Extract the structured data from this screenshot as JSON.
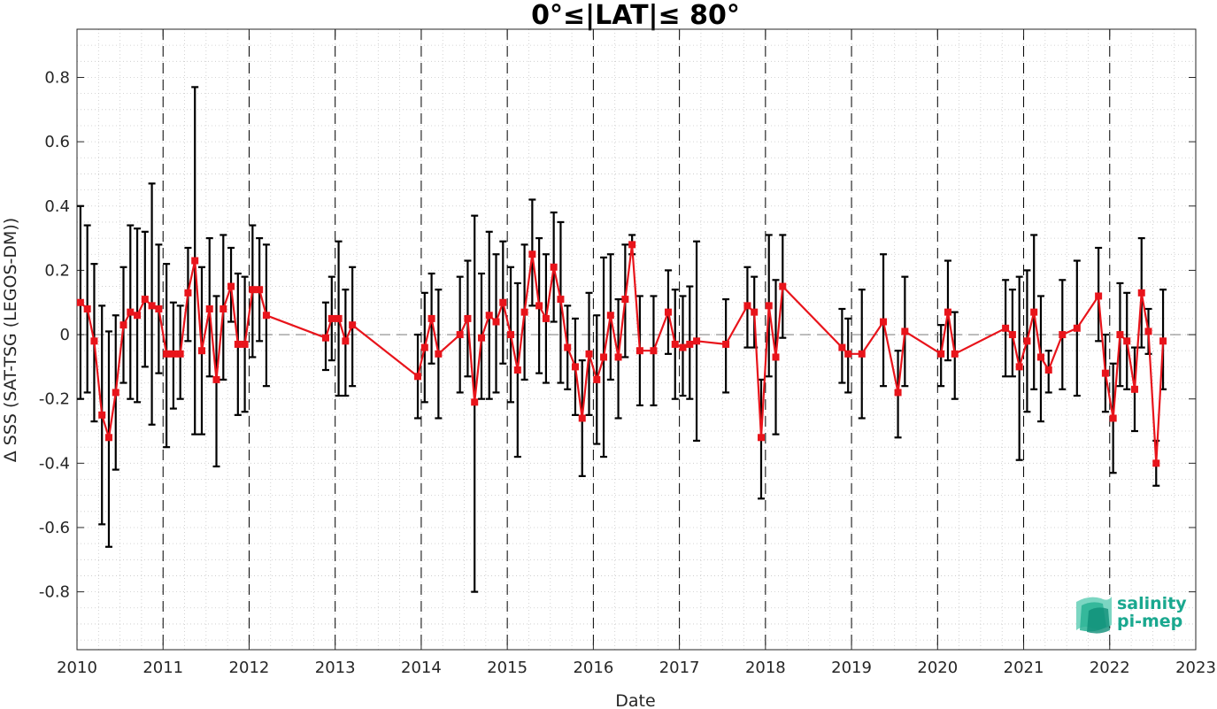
{
  "chart_data": {
    "type": "line",
    "title": "0°≤|LAT|≤ 80°",
    "xlabel": "Date",
    "ylabel": "Δ SSS (SAT-TSG (LEGOS-DM))",
    "xlim": [
      2010,
      2023
    ],
    "ylim": [
      -0.98,
      0.95
    ],
    "xticks": [
      "2010",
      "2011",
      "2012",
      "2013",
      "2014",
      "2015",
      "2016",
      "2017",
      "2018",
      "2019",
      "2020",
      "2021",
      "2022",
      "2023"
    ],
    "yticks": [
      "-0.8",
      "-0.6",
      "-0.4",
      "-0.2",
      "0",
      "0.2",
      "0.4",
      "0.6",
      "0.8"
    ],
    "grid": "minor dotted",
    "year_boundaries_dashed": true,
    "zero_line_dashed": true,
    "series_color": "#e8141b",
    "errorbar_color": "#000000",
    "series": [
      {
        "points": [
          {
            "x": 2010.04,
            "y": 0.1,
            "lo": -0.2,
            "hi": 0.4
          },
          {
            "x": 2010.12,
            "y": 0.08,
            "lo": -0.18,
            "hi": 0.34
          },
          {
            "x": 2010.2,
            "y": -0.02,
            "lo": -0.27,
            "hi": 0.22
          },
          {
            "x": 2010.29,
            "y": -0.25,
            "lo": -0.59,
            "hi": 0.09
          },
          {
            "x": 2010.37,
            "y": -0.32,
            "lo": -0.66,
            "hi": 0.01
          },
          {
            "x": 2010.45,
            "y": -0.18,
            "lo": -0.42,
            "hi": 0.06
          },
          {
            "x": 2010.54,
            "y": 0.03,
            "lo": -0.15,
            "hi": 0.21
          },
          {
            "x": 2010.62,
            "y": 0.07,
            "lo": -0.2,
            "hi": 0.34
          },
          {
            "x": 2010.7,
            "y": 0.06,
            "lo": -0.21,
            "hi": 0.33
          },
          {
            "x": 2010.79,
            "y": 0.11,
            "lo": -0.1,
            "hi": 0.32
          },
          {
            "x": 2010.87,
            "y": 0.09,
            "lo": -0.28,
            "hi": 0.47
          },
          {
            "x": 2010.95,
            "y": 0.08,
            "lo": -0.12,
            "hi": 0.28
          },
          {
            "x": 2011.04,
            "y": -0.06,
            "lo": -0.35,
            "hi": 0.22
          },
          {
            "x": 2011.12,
            "y": -0.06,
            "lo": -0.23,
            "hi": 0.1
          },
          {
            "x": 2011.2,
            "y": -0.06,
            "lo": -0.2,
            "hi": 0.09
          },
          {
            "x": 2011.29,
            "y": 0.13,
            "lo": -0.02,
            "hi": 0.27
          },
          {
            "x": 2011.37,
            "y": 0.23,
            "lo": -0.31,
            "hi": 0.77
          },
          {
            "x": 2011.45,
            "y": -0.05,
            "lo": -0.31,
            "hi": 0.21
          },
          {
            "x": 2011.54,
            "y": 0.08,
            "lo": -0.13,
            "hi": 0.3
          },
          {
            "x": 2011.62,
            "y": -0.14,
            "lo": -0.41,
            "hi": 0.12
          },
          {
            "x": 2011.7,
            "y": 0.08,
            "lo": -0.14,
            "hi": 0.31
          },
          {
            "x": 2011.79,
            "y": 0.15,
            "lo": 0.04,
            "hi": 0.27
          },
          {
            "x": 2011.87,
            "y": -0.03,
            "lo": -0.25,
            "hi": 0.19
          },
          {
            "x": 2011.95,
            "y": -0.03,
            "lo": -0.24,
            "hi": 0.18
          },
          {
            "x": 2012.04,
            "y": 0.14,
            "lo": -0.07,
            "hi": 0.34
          },
          {
            "x": 2012.12,
            "y": 0.14,
            "lo": -0.02,
            "hi": 0.3
          },
          {
            "x": 2012.2,
            "y": 0.06,
            "lo": -0.16,
            "hi": 0.28
          },
          {
            "x": 2012.89,
            "y": -0.01,
            "lo": -0.11,
            "hi": 0.1
          },
          {
            "x": 2012.96,
            "y": 0.05,
            "lo": -0.08,
            "hi": 0.18
          },
          {
            "x": 2013.04,
            "y": 0.05,
            "lo": -0.19,
            "hi": 0.29
          },
          {
            "x": 2013.12,
            "y": -0.02,
            "lo": -0.19,
            "hi": 0.14
          },
          {
            "x": 2013.2,
            "y": 0.03,
            "lo": -0.16,
            "hi": 0.21
          },
          {
            "x": 2013.96,
            "y": -0.13,
            "lo": -0.26,
            "hi": 0.0
          },
          {
            "x": 2014.04,
            "y": -0.04,
            "lo": -0.21,
            "hi": 0.13
          },
          {
            "x": 2014.12,
            "y": 0.05,
            "lo": -0.09,
            "hi": 0.19
          },
          {
            "x": 2014.2,
            "y": -0.06,
            "lo": -0.26,
            "hi": 0.14
          },
          {
            "x": 2014.45,
            "y": 0.0,
            "lo": -0.18,
            "hi": 0.18
          },
          {
            "x": 2014.54,
            "y": 0.05,
            "lo": -0.13,
            "hi": 0.23
          },
          {
            "x": 2014.62,
            "y": -0.21,
            "lo": -0.8,
            "hi": 0.37
          },
          {
            "x": 2014.7,
            "y": -0.01,
            "lo": -0.2,
            "hi": 0.19
          },
          {
            "x": 2014.79,
            "y": 0.06,
            "lo": -0.2,
            "hi": 0.32
          },
          {
            "x": 2014.87,
            "y": 0.04,
            "lo": -0.18,
            "hi": 0.25
          },
          {
            "x": 2014.95,
            "y": 0.1,
            "lo": -0.09,
            "hi": 0.29
          },
          {
            "x": 2015.04,
            "y": 0.0,
            "lo": -0.21,
            "hi": 0.21
          },
          {
            "x": 2015.12,
            "y": -0.11,
            "lo": -0.38,
            "hi": 0.16
          },
          {
            "x": 2015.2,
            "y": 0.07,
            "lo": -0.14,
            "hi": 0.28
          },
          {
            "x": 2015.29,
            "y": 0.25,
            "lo": 0.09,
            "hi": 0.42
          },
          {
            "x": 2015.37,
            "y": 0.09,
            "lo": -0.12,
            "hi": 0.3
          },
          {
            "x": 2015.45,
            "y": 0.05,
            "lo": -0.15,
            "hi": 0.25
          },
          {
            "x": 2015.54,
            "y": 0.21,
            "lo": 0.04,
            "hi": 0.38
          },
          {
            "x": 2015.62,
            "y": 0.11,
            "lo": -0.15,
            "hi": 0.35
          },
          {
            "x": 2015.7,
            "y": -0.04,
            "lo": -0.17,
            "hi": 0.09
          },
          {
            "x": 2015.79,
            "y": -0.1,
            "lo": -0.25,
            "hi": 0.05
          },
          {
            "x": 2015.87,
            "y": -0.26,
            "lo": -0.44,
            "hi": -0.08
          },
          {
            "x": 2015.95,
            "y": -0.06,
            "lo": -0.25,
            "hi": 0.13
          },
          {
            "x": 2016.04,
            "y": -0.14,
            "lo": -0.34,
            "hi": 0.06
          },
          {
            "x": 2016.12,
            "y": -0.07,
            "lo": -0.38,
            "hi": 0.24
          },
          {
            "x": 2016.2,
            "y": 0.06,
            "lo": -0.14,
            "hi": 0.25
          },
          {
            "x": 2016.29,
            "y": -0.07,
            "lo": -0.26,
            "hi": 0.11
          },
          {
            "x": 2016.37,
            "y": 0.11,
            "lo": -0.07,
            "hi": 0.28
          },
          {
            "x": 2016.45,
            "y": 0.28,
            "lo": 0.25,
            "hi": 0.31
          },
          {
            "x": 2016.54,
            "y": -0.05,
            "lo": -0.22,
            "hi": 0.12
          },
          {
            "x": 2016.7,
            "y": -0.05,
            "lo": -0.22,
            "hi": 0.12
          },
          {
            "x": 2016.87,
            "y": 0.07,
            "lo": -0.06,
            "hi": 0.2
          },
          {
            "x": 2016.95,
            "y": -0.03,
            "lo": -0.2,
            "hi": 0.14
          },
          {
            "x": 2017.04,
            "y": -0.04,
            "lo": -0.19,
            "hi": 0.12
          },
          {
            "x": 2017.12,
            "y": -0.03,
            "lo": -0.2,
            "hi": 0.15
          },
          {
            "x": 2017.2,
            "y": -0.02,
            "lo": -0.33,
            "hi": 0.29
          },
          {
            "x": 2017.54,
            "y": -0.03,
            "lo": -0.18,
            "hi": 0.11
          },
          {
            "x": 2017.79,
            "y": 0.09,
            "lo": -0.04,
            "hi": 0.21
          },
          {
            "x": 2017.87,
            "y": 0.07,
            "lo": -0.04,
            "hi": 0.18
          },
          {
            "x": 2017.95,
            "y": -0.32,
            "lo": -0.51,
            "hi": -0.14
          },
          {
            "x": 2018.04,
            "y": 0.09,
            "lo": -0.13,
            "hi": 0.31
          },
          {
            "x": 2018.12,
            "y": -0.07,
            "lo": -0.31,
            "hi": 0.17
          },
          {
            "x": 2018.2,
            "y": 0.15,
            "lo": -0.01,
            "hi": 0.31
          },
          {
            "x": 2018.89,
            "y": -0.04,
            "lo": -0.15,
            "hi": 0.08
          },
          {
            "x": 2018.96,
            "y": -0.06,
            "lo": -0.18,
            "hi": 0.05
          },
          {
            "x": 2019.12,
            "y": -0.06,
            "lo": -0.26,
            "hi": 0.14
          },
          {
            "x": 2019.37,
            "y": 0.04,
            "lo": -0.16,
            "hi": 0.25
          },
          {
            "x": 2019.54,
            "y": -0.18,
            "lo": -0.32,
            "hi": -0.05
          },
          {
            "x": 2019.62,
            "y": 0.01,
            "lo": -0.16,
            "hi": 0.18
          },
          {
            "x": 2020.04,
            "y": -0.06,
            "lo": -0.16,
            "hi": 0.03
          },
          {
            "x": 2020.12,
            "y": 0.07,
            "lo": -0.08,
            "hi": 0.23
          },
          {
            "x": 2020.2,
            "y": -0.06,
            "lo": -0.2,
            "hi": 0.07
          },
          {
            "x": 2020.79,
            "y": 0.02,
            "lo": -0.13,
            "hi": 0.17
          },
          {
            "x": 2020.87,
            "y": 0.0,
            "lo": -0.13,
            "hi": 0.14
          },
          {
            "x": 2020.95,
            "y": -0.1,
            "lo": -0.39,
            "hi": 0.18
          },
          {
            "x": 2021.04,
            "y": -0.02,
            "lo": -0.24,
            "hi": 0.2
          },
          {
            "x": 2021.12,
            "y": 0.07,
            "lo": -0.17,
            "hi": 0.31
          },
          {
            "x": 2021.2,
            "y": -0.07,
            "lo": -0.27,
            "hi": 0.12
          },
          {
            "x": 2021.29,
            "y": -0.11,
            "lo": -0.18,
            "hi": -0.05
          },
          {
            "x": 2021.45,
            "y": 0.0,
            "lo": -0.17,
            "hi": 0.17
          },
          {
            "x": 2021.62,
            "y": 0.02,
            "lo": -0.19,
            "hi": 0.23
          },
          {
            "x": 2021.87,
            "y": 0.12,
            "lo": -0.02,
            "hi": 0.27
          },
          {
            "x": 2021.95,
            "y": -0.12,
            "lo": -0.24,
            "hi": 0.0
          },
          {
            "x": 2022.04,
            "y": -0.26,
            "lo": -0.43,
            "hi": -0.09
          },
          {
            "x": 2022.12,
            "y": 0.0,
            "lo": -0.16,
            "hi": 0.16
          },
          {
            "x": 2022.2,
            "y": -0.02,
            "lo": -0.17,
            "hi": 0.13
          },
          {
            "x": 2022.29,
            "y": -0.17,
            "lo": -0.3,
            "hi": -0.04
          },
          {
            "x": 2022.37,
            "y": 0.13,
            "lo": -0.04,
            "hi": 0.3
          },
          {
            "x": 2022.45,
            "y": 0.01,
            "lo": -0.06,
            "hi": 0.08
          },
          {
            "x": 2022.54,
            "y": -0.4,
            "lo": -0.47,
            "hi": -0.33
          },
          {
            "x": 2022.62,
            "y": -0.02,
            "lo": -0.17,
            "hi": 0.14
          }
        ]
      }
    ]
  },
  "logo": {
    "line1": "salinity",
    "line2": "pi-mep",
    "color": "#1aa88f"
  }
}
